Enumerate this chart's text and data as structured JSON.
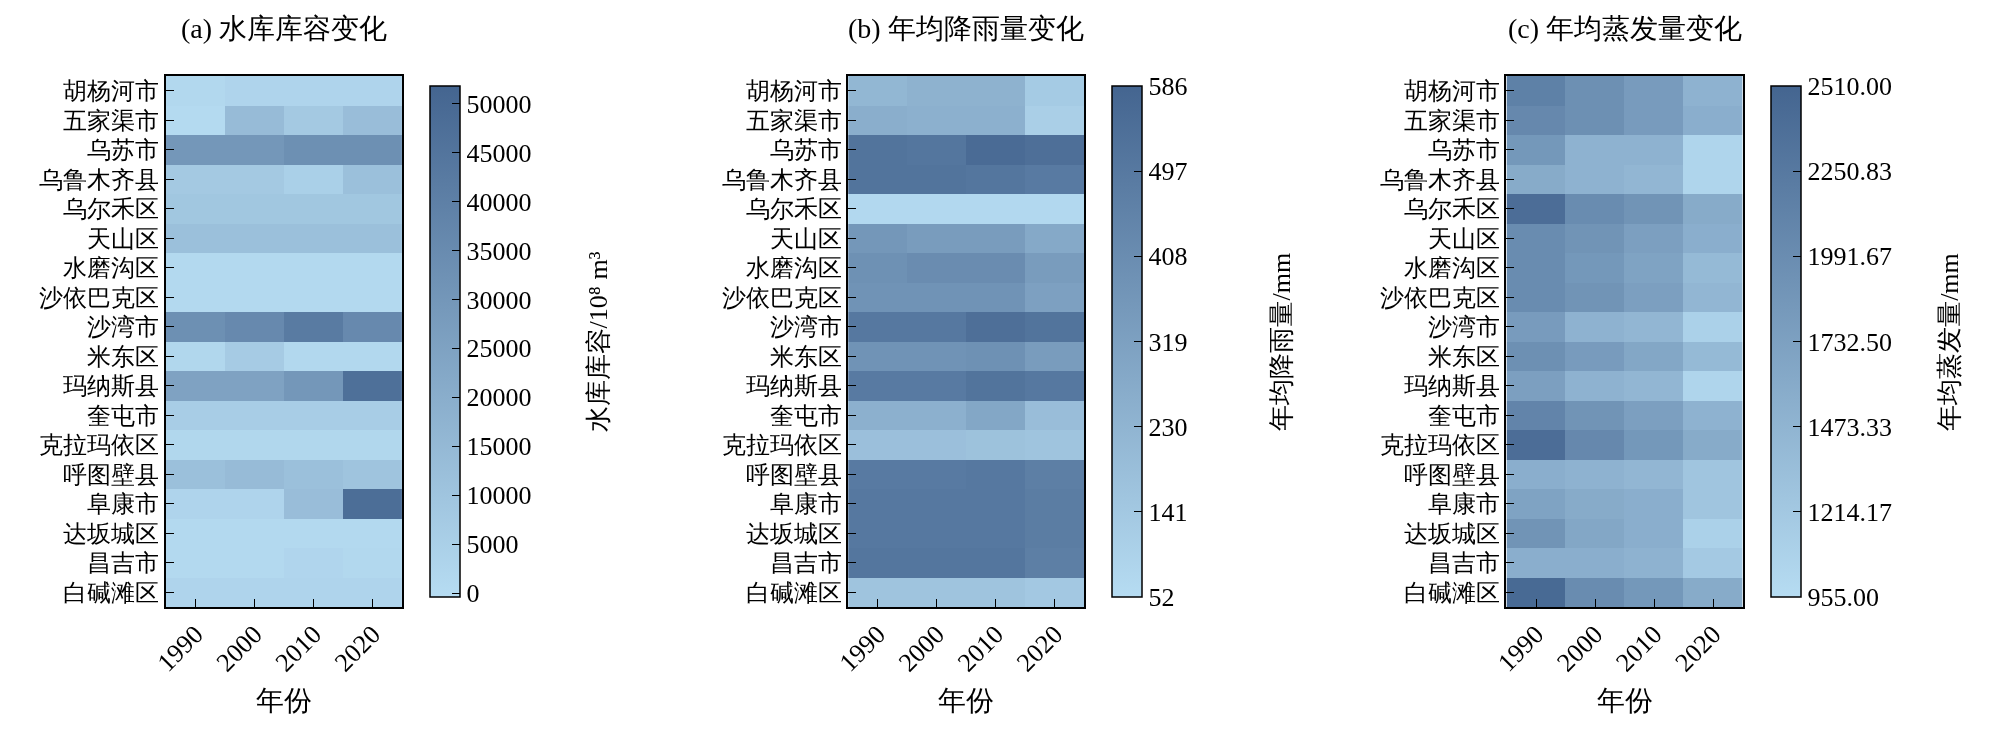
{
  "chart_data": [
    {
      "type": "heatmap",
      "title": "(a) 水库库容变化",
      "xlabel": "年份",
      "clabel": "水库库容/10⁸ m³",
      "categories": [
        "1990",
        "2000",
        "2010",
        "2020"
      ],
      "y_categories": [
        "胡杨河市",
        "五家渠市",
        "乌苏市",
        "乌鲁木齐县",
        "乌尔禾区",
        "天山区",
        "水磨沟区",
        "沙依巴克区",
        "沙湾市",
        "米东区",
        "玛纳斯县",
        "奎屯市",
        "克拉玛依区",
        "呼图壁县",
        "阜康市",
        "达坂城区",
        "昌吉市",
        "白碱滩区"
      ],
      "cells": [
        [
          1500,
          3000,
          3000,
          3000
        ],
        [
          500,
          14000,
          8000,
          13000
        ],
        [
          30000,
          30000,
          33000,
          33000
        ],
        [
          8000,
          8000,
          5000,
          12000
        ],
        [
          9000,
          9000,
          9000,
          9000
        ],
        [
          12000,
          12000,
          12000,
          12000
        ],
        [
          1000,
          1000,
          1000,
          1000
        ],
        [
          1000,
          1000,
          1000,
          1000
        ],
        [
          33000,
          36000,
          42000,
          36000
        ],
        [
          2000,
          7000,
          1500,
          1500
        ],
        [
          25000,
          25000,
          30000,
          47000
        ],
        [
          6000,
          6000,
          6000,
          6000
        ],
        [
          2000,
          2000,
          2000,
          2000
        ],
        [
          12000,
          14000,
          12000,
          10000
        ],
        [
          3000,
          3000,
          13000,
          48000
        ],
        [
          1000,
          1000,
          1000,
          1000
        ],
        [
          1000,
          1000,
          2500,
          1500
        ],
        [
          3000,
          3000,
          3000,
          3000
        ]
      ],
      "clim": [
        -400,
        51800
      ],
      "cticks": [
        0,
        5000,
        10000,
        15000,
        20000,
        25000,
        30000,
        35000,
        40000,
        45000,
        50000
      ]
    },
    {
      "type": "heatmap",
      "title": "(b) 年均降雨量变化",
      "xlabel": "年份",
      "clabel": "年均降雨量/mm",
      "categories": [
        "1990",
        "2000",
        "2010",
        "2020"
      ],
      "y_categories": [
        "胡杨河市",
        "五家渠市",
        "乌苏市",
        "乌鲁木齐县",
        "乌尔禾区",
        "天山区",
        "水磨沟区",
        "沙依巴克区",
        "沙湾市",
        "米东区",
        "玛纳斯县",
        "奎屯市",
        "克拉玛依区",
        "呼图壁县",
        "阜康市",
        "达坂城区",
        "昌吉市",
        "白碱滩区"
      ],
      "cells": [
        [
          220,
          240,
          240,
          130
        ],
        [
          260,
          250,
          250,
          110
        ],
        [
          520,
          510,
          560,
          540
        ],
        [
          520,
          520,
          510,
          490
        ],
        [
          70,
          70,
          70,
          70
        ],
        [
          360,
          340,
          340,
          280
        ],
        [
          390,
          410,
          410,
          340
        ],
        [
          380,
          380,
          380,
          320
        ],
        [
          500,
          500,
          540,
          520
        ],
        [
          380,
          380,
          390,
          340
        ],
        [
          490,
          490,
          520,
          500
        ],
        [
          250,
          250,
          290,
          190
        ],
        [
          180,
          180,
          170,
          160
        ],
        [
          490,
          490,
          500,
          470
        ],
        [
          500,
          500,
          500,
          480
        ],
        [
          500,
          500,
          500,
          480
        ],
        [
          510,
          510,
          510,
          470
        ],
        [
          160,
          160,
          160,
          140
        ]
      ],
      "clim": [
        52,
        586
      ],
      "cticks": [
        52,
        141,
        230,
        319,
        408,
        497,
        586
      ]
    },
    {
      "type": "heatmap",
      "title": "(c) 年均蒸发量变化",
      "xlabel": "年份",
      "clabel": "年均蒸发量/mm",
      "categories": [
        "1990",
        "2000",
        "2010",
        "2020"
      ],
      "y_categories": [
        "胡杨河市",
        "五家渠市",
        "乌苏市",
        "乌鲁木齐县",
        "乌尔禾区",
        "天山区",
        "水磨沟区",
        "沙依巴克区",
        "沙湾市",
        "米东区",
        "玛纳斯县",
        "奎屯市",
        "克拉玛依区",
        "呼图壁县",
        "阜康市",
        "达坂城区",
        "昌吉市",
        "白碱滩区"
      ],
      "cells": [
        [
          2150,
          1950,
          1800,
          1500
        ],
        [
          2050,
          1950,
          1800,
          1550
        ],
        [
          1850,
          1500,
          1500,
          1050
        ],
        [
          1600,
          1500,
          1450,
          1050
        ],
        [
          2400,
          2000,
          1900,
          1600
        ],
        [
          2000,
          1900,
          1750,
          1550
        ],
        [
          2000,
          1850,
          1700,
          1400
        ],
        [
          2000,
          1900,
          1750,
          1450
        ],
        [
          1800,
          1500,
          1450,
          1100
        ],
        [
          1950,
          1800,
          1650,
          1400
        ],
        [
          1750,
          1500,
          1450,
          1050
        ],
        [
          2100,
          1900,
          1750,
          1500
        ],
        [
          2400,
          2050,
          1850,
          1600
        ],
        [
          1550,
          1500,
          1450,
          1250
        ],
        [
          1700,
          1600,
          1550,
          1250
        ],
        [
          1900,
          1650,
          1550,
          1100
        ],
        [
          1550,
          1550,
          1500,
          1200
        ],
        [
          2450,
          2000,
          1850,
          1600
        ]
      ],
      "clim": [
        955,
        2510
      ],
      "cticks": [
        {
          "value": 955,
          "label": "955.00"
        },
        {
          "value": 1214.17,
          "label": "1214.17"
        },
        {
          "value": 1473.33,
          "label": "1473.33"
        },
        {
          "value": 1732.5,
          "label": "1732.50"
        },
        {
          "value": 1991.67,
          "label": "1991.67"
        },
        {
          "value": 2250.83,
          "label": "2250.83"
        },
        {
          "value": 2510,
          "label": "2510.00"
        }
      ]
    }
  ]
}
